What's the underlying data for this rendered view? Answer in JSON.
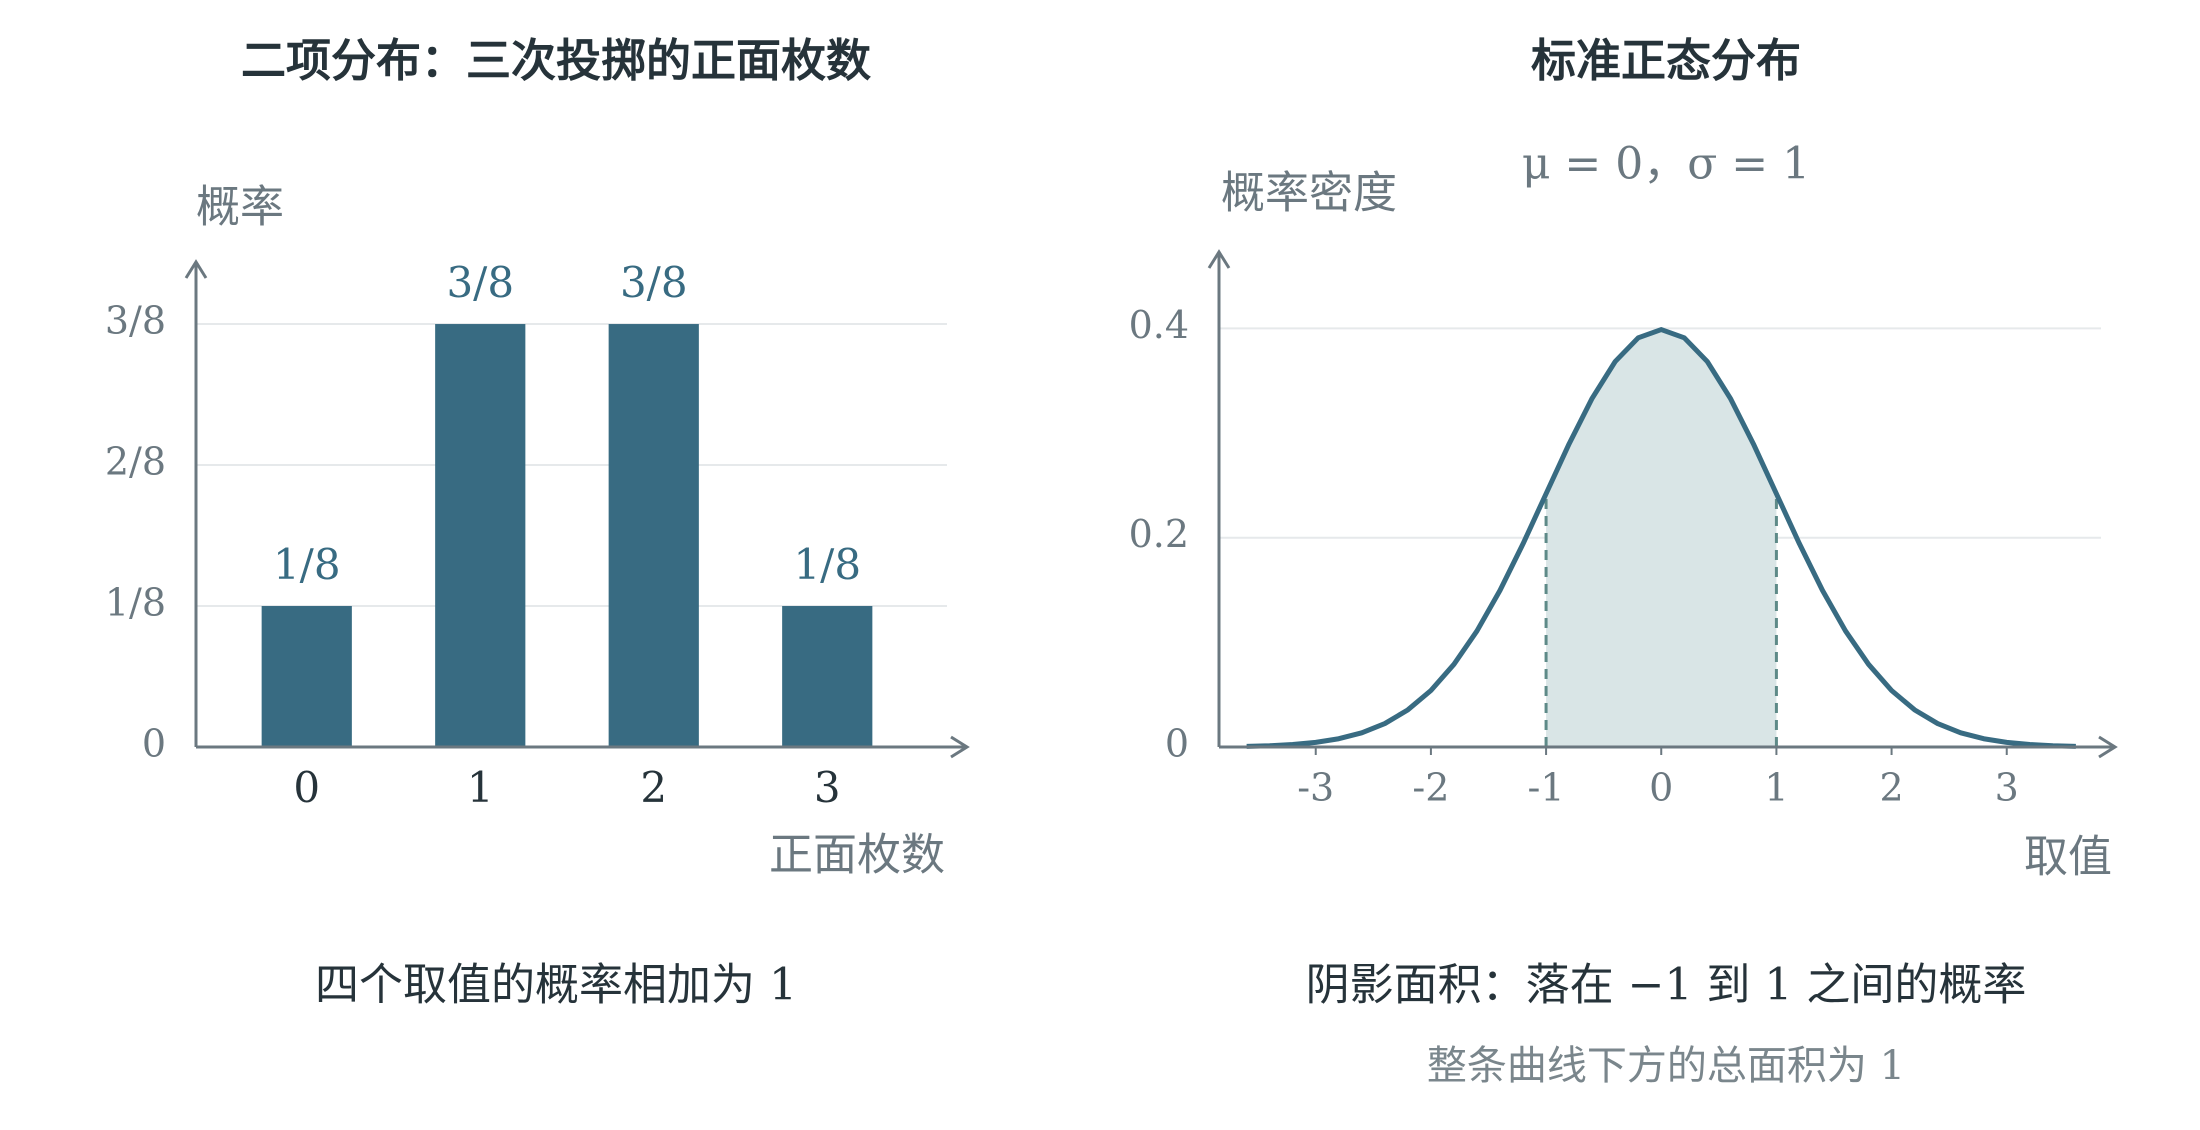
{
  "chart_data": [
    {
      "type": "bar",
      "title": "二项分布：三次投掷的正面枚数",
      "ylabel": "概率",
      "xlabel": "正面枚数",
      "categories": [
        "0",
        "1",
        "2",
        "3"
      ],
      "values": [
        0.125,
        0.375,
        0.375,
        0.125
      ],
      "value_labels": [
        "1/8",
        "3/8",
        "3/8",
        "1/8"
      ],
      "color": "#386b82",
      "ylim": [
        0,
        0.43
      ],
      "yticks": [
        0,
        {
          "value": 0.125,
          "label": "1/8"
        },
        {
          "value": 0.25,
          "label": "2/8"
        },
        {
          "value": 0.375,
          "label": "3/8"
        }
      ],
      "grid": true,
      "caption": "四个取值的概率相加为 1"
    },
    {
      "type": "line",
      "title": "标准正态分布",
      "subtitle": "μ = 0，σ = 1",
      "ylabel": "概率密度",
      "xlabel": "取值",
      "x": [
        -3.6,
        -3.4,
        -3.2,
        -3.0,
        -2.8,
        -2.6,
        -2.4,
        -2.2,
        -2.0,
        -1.8,
        -1.6,
        -1.4,
        -1.2,
        -1.0,
        -0.8,
        -0.6,
        -0.4,
        -0.2,
        0,
        0.2,
        0.4,
        0.6,
        0.8,
        1.0,
        1.2,
        1.4,
        1.6,
        1.8,
        2.0,
        2.2,
        2.4,
        2.6,
        2.8,
        3.0,
        3.2,
        3.4,
        3.6
      ],
      "values": [
        0.0006,
        0.0012,
        0.0024,
        0.0044,
        0.0079,
        0.0136,
        0.0224,
        0.0355,
        0.054,
        0.079,
        0.1109,
        0.1497,
        0.1942,
        0.242,
        0.2897,
        0.3332,
        0.3683,
        0.391,
        0.3989,
        0.391,
        0.3683,
        0.3332,
        0.2897,
        0.242,
        0.1942,
        0.1497,
        0.1109,
        0.079,
        0.054,
        0.0355,
        0.0224,
        0.0136,
        0.0079,
        0.0044,
        0.0024,
        0.0012,
        0.0006
      ],
      "color": "#386b82",
      "shade_color": "#d9e5e6",
      "shade": [
        -1,
        1
      ],
      "xlim": [
        -3.84,
        3.94
      ],
      "xticks": [
        -3,
        -2,
        -1,
        0,
        1,
        2,
        3
      ],
      "ylim": [
        0,
        0.473
      ],
      "yticks": [
        0,
        0.2,
        0.4
      ],
      "grid": true,
      "caption": "阴影面积：落在 −1 到 1 之间的概率",
      "note": "整条曲线下方的总面积为 1"
    }
  ]
}
